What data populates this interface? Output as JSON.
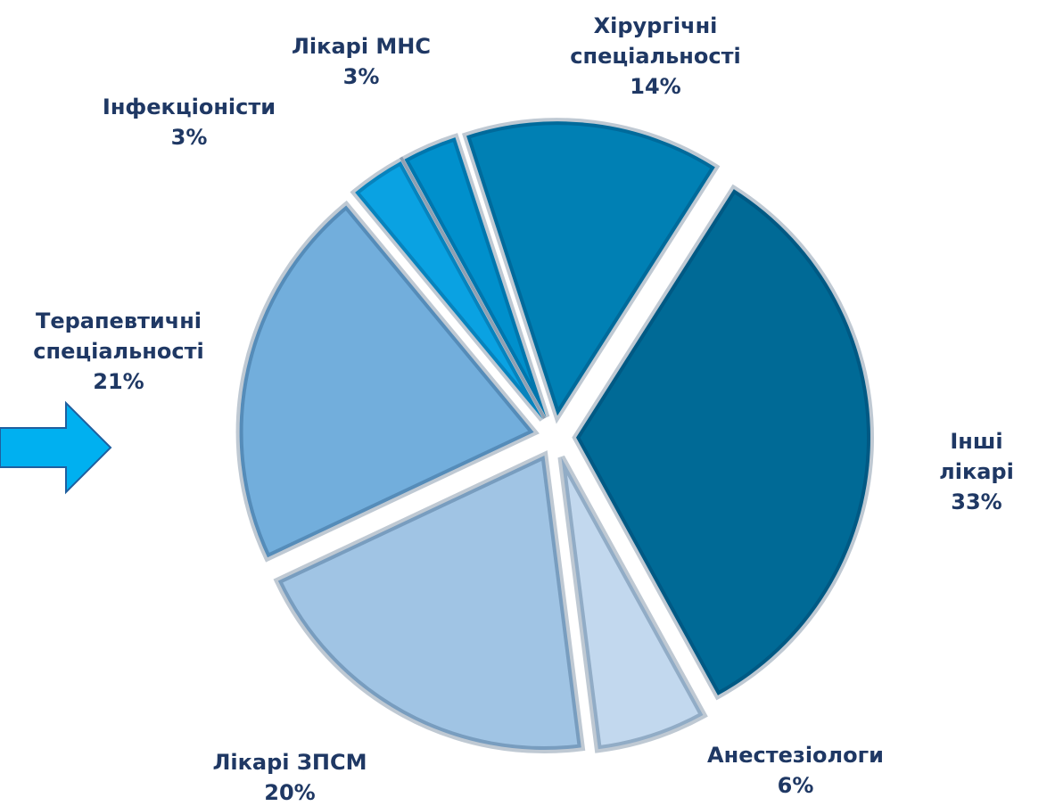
{
  "chart_data": {
    "type": "pie",
    "categories": [
      "Хірургічні\nспеціальності",
      "Інші лікарі",
      "Анестезіологи",
      "Лікарі ЗПСМ",
      "Терапевтичні\nспеціальності",
      "Інфекціоністи",
      "Лікарі МНС"
    ],
    "values": [
      14,
      33,
      6,
      20,
      21,
      3,
      3
    ],
    "value_labels": [
      "14%",
      "33%",
      "6%",
      "20%",
      "21%",
      "3%",
      "3%"
    ],
    "colors": [
      "#0080b4",
      "#006a96",
      "#c2d8ee",
      "#a0c4e4",
      "#72aedc",
      "#0aa2e2",
      "#0090cc"
    ]
  }
}
